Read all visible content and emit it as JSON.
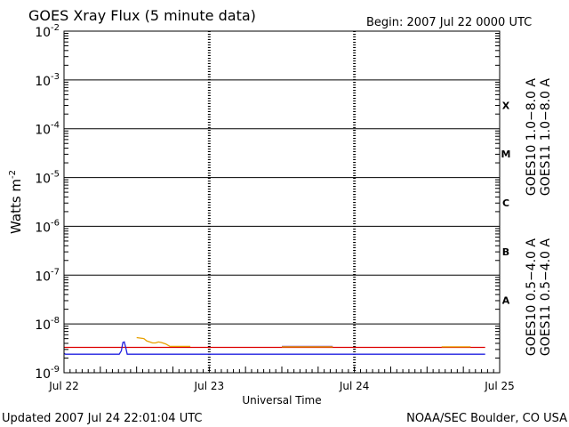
{
  "chart_data": {
    "type": "line",
    "title": "GOES Xray Flux (5 minute data)",
    "begin_text": "Begin:  2007 Jul 22 0000 UTC",
    "xlabel": "Universal Time",
    "ylabel": "Watts m",
    "ylabel_sup": "-2",
    "yscale": "log",
    "ylim": [
      1e-09,
      0.01
    ],
    "y_ticks": [
      {
        "base": "10",
        "exp": "-2",
        "value": -2
      },
      {
        "base": "10",
        "exp": "-3",
        "value": -3
      },
      {
        "base": "10",
        "exp": "-4",
        "value": -4
      },
      {
        "base": "10",
        "exp": "-5",
        "value": -5
      },
      {
        "base": "10",
        "exp": "-6",
        "value": -6
      },
      {
        "base": "10",
        "exp": "-7",
        "value": -7
      },
      {
        "base": "10",
        "exp": "-8",
        "value": -8
      },
      {
        "base": "10",
        "exp": "-9",
        "value": -9
      }
    ],
    "x_ticks": [
      {
        "label": "Jul 22",
        "day": 0
      },
      {
        "label": "Jul 23",
        "day": 1
      },
      {
        "label": "Jul 24",
        "day": 2
      },
      {
        "label": "Jul 25",
        "day": 3
      }
    ],
    "xlim_days": [
      0,
      3
    ],
    "flare_classes": [
      {
        "label": "X",
        "low": -4,
        "high": -3
      },
      {
        "label": "M",
        "low": -5,
        "high": -4
      },
      {
        "label": "C",
        "low": -6,
        "high": -5
      },
      {
        "label": "B",
        "low": -7,
        "high": -6
      },
      {
        "label": "A",
        "low": -8,
        "high": -7
      }
    ],
    "legend_right": [
      {
        "text": "GOES11 1.0−8.0 A",
        "color": "#dd0000"
      },
      {
        "text": "GOES10 1.0−8.0 A",
        "color": "#8040c0"
      }
    ],
    "legend_left": [
      {
        "text": "GOES11 0.5−4.0 A",
        "color": "#2020e0"
      },
      {
        "text": "GOES10 0.5−4.0 A",
        "color": "#e8a000"
      }
    ],
    "series": [
      {
        "name": "GOES11 1.0−8.0 A",
        "color": "#dd0000",
        "points": [
          [
            0,
            -8.48
          ],
          [
            2.9,
            -8.48
          ]
        ]
      },
      {
        "name": "GOES10 1.0−8.0 A",
        "color": "#8040c0",
        "points": [
          [
            1.5,
            -8.46
          ],
          [
            1.85,
            -8.46
          ]
        ]
      },
      {
        "name": "GOES11 0.5−4.0 A",
        "color": "#2020e0",
        "points": [
          [
            0,
            -8.6
          ],
          [
            0.01,
            -8.62
          ],
          [
            0.38,
            -8.62
          ],
          [
            0.395,
            -8.55
          ],
          [
            0.405,
            -8.38
          ],
          [
            0.415,
            -8.37
          ],
          [
            0.425,
            -8.48
          ],
          [
            0.435,
            -8.62
          ],
          [
            2.9,
            -8.62
          ]
        ]
      },
      {
        "name": "GOES10 0.5−4.0 A",
        "color": "#e8a000",
        "segments": [
          [
            [
              0.5,
              -8.28
            ],
            [
              0.55,
              -8.3
            ],
            [
              0.57,
              -8.35
            ],
            [
              0.59,
              -8.37
            ],
            [
              0.61,
              -8.39
            ],
            [
              0.63,
              -8.39
            ],
            [
              0.65,
              -8.37
            ],
            [
              0.67,
              -8.38
            ],
            [
              0.7,
              -8.41
            ],
            [
              0.73,
              -8.46
            ],
            [
              0.87,
              -8.46
            ]
          ],
          [
            [
              1.5,
              -8.47
            ],
            [
              1.85,
              -8.47
            ]
          ],
          [
            [
              2.6,
              -8.47
            ],
            [
              2.8,
              -8.47
            ]
          ]
        ]
      }
    ]
  },
  "footer": {
    "updated": "Updated 2007 Jul 24 22:01:04 UTC",
    "credit": "NOAA/SEC Boulder, CO USA"
  }
}
